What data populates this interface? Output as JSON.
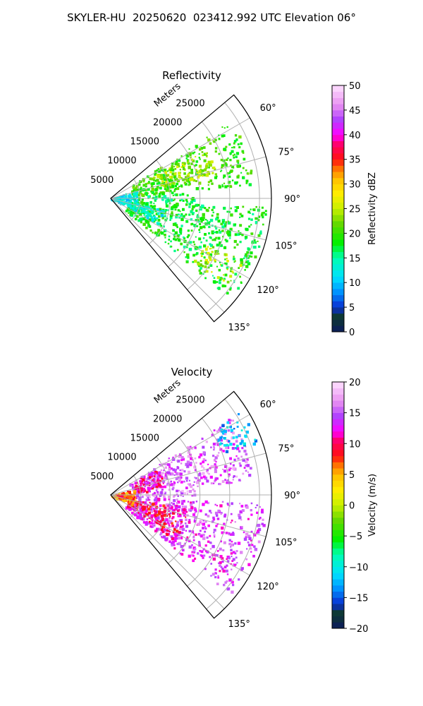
{
  "figure": {
    "title": "SKYLER-HU  20250620  023412.992 UTC Elevation 06°"
  },
  "chart_data": [
    {
      "type": "heatmap",
      "subtype": "polar-sector",
      "title": "Reflectivity",
      "radial_axis_label": "Meters",
      "radial_ticks": [
        5000,
        10000,
        15000,
        20000,
        25000
      ],
      "radial_tick_labels": [
        "5000",
        "10000",
        "15000",
        "20000",
        "25000"
      ],
      "rlim": [
        0,
        27000
      ],
      "azimuth_range_deg": [
        50,
        140
      ],
      "azimuth_ticks": [
        60,
        75,
        90,
        105,
        120,
        135
      ],
      "azimuth_tick_labels": [
        "60°",
        "75°",
        "90°",
        "105°",
        "120°",
        "135°"
      ],
      "grid": true,
      "colorbar": {
        "label": "Reflectivity dBZ",
        "range": [
          0,
          50
        ],
        "ticks": [
          0,
          5,
          10,
          15,
          20,
          25,
          30,
          35,
          40,
          45,
          50
        ],
        "tick_labels": [
          "0",
          "5",
          "10",
          "15",
          "20",
          "25",
          "30",
          "35",
          "40",
          "45",
          "50"
        ]
      },
      "echo_regions": [
        {
          "az_range": [
            57,
            84
          ],
          "r_range": [
            3500,
            24000
          ],
          "value": 20
        },
        {
          "az_range": [
            62,
            76
          ],
          "r_range": [
            8000,
            18000
          ],
          "value": 24
        },
        {
          "az_range": [
            85,
            92
          ],
          "r_range": [
            3500,
            14000
          ],
          "value": 17
        },
        {
          "az_range": [
            93,
            130
          ],
          "r_range": [
            3000,
            26000
          ],
          "value": 18
        },
        {
          "az_range": [
            115,
            127
          ],
          "r_range": [
            17000,
            24500
          ],
          "value": 24
        },
        {
          "az_range": [
            70,
            115
          ],
          "r_range": [
            0,
            4500
          ],
          "value": 12
        },
        {
          "az_range": [
            102,
            118
          ],
          "r_range": [
            3000,
            9000
          ],
          "value": 13
        }
      ]
    },
    {
      "type": "heatmap",
      "subtype": "polar-sector",
      "title": "Velocity",
      "radial_axis_label": "Meters",
      "radial_ticks": [
        5000,
        10000,
        15000,
        20000,
        25000
      ],
      "radial_tick_labels": [
        "5000",
        "10000",
        "15000",
        "20000",
        "25000"
      ],
      "rlim": [
        0,
        27000
      ],
      "azimuth_range_deg": [
        50,
        140
      ],
      "azimuth_ticks": [
        60,
        75,
        90,
        105,
        120,
        135
      ],
      "azimuth_tick_labels": [
        "60°",
        "75°",
        "90°",
        "105°",
        "120°",
        "135°"
      ],
      "grid": true,
      "colorbar": {
        "label": "Velocity (m/s)",
        "range": [
          -20,
          20
        ],
        "ticks": [
          -20,
          -15,
          -10,
          -5,
          0,
          5,
          10,
          15,
          20
        ],
        "tick_labels": [
          "−20",
          "−15",
          "−10",
          "−5",
          "0",
          "5",
          "10",
          "15",
          "20"
        ]
      },
      "echo_regions": [
        {
          "az_range": [
            57,
            84
          ],
          "r_range": [
            3500,
            24000
          ],
          "value": 15
        },
        {
          "az_range": [
            57,
            70
          ],
          "r_range": [
            20000,
            26000
          ],
          "value": -12
        },
        {
          "az_range": [
            60,
            84
          ],
          "r_range": [
            4000,
            9000
          ],
          "value": 11
        },
        {
          "az_range": [
            85,
            92
          ],
          "r_range": [
            3500,
            14000
          ],
          "value": 16
        },
        {
          "az_range": [
            93,
            130
          ],
          "r_range": [
            3000,
            26000
          ],
          "value": 14
        },
        {
          "az_range": [
            100,
            125
          ],
          "r_range": [
            3000,
            13000
          ],
          "value": 10
        },
        {
          "az_range": [
            75,
            115
          ],
          "r_range": [
            0,
            4000
          ],
          "value": 7
        }
      ]
    }
  ]
}
